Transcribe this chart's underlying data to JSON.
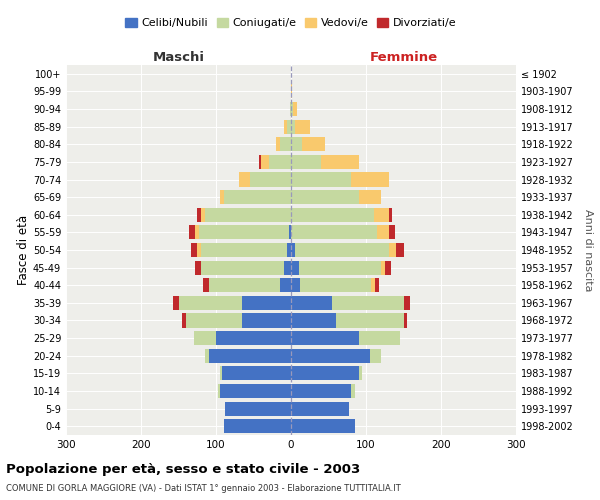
{
  "age_groups": [
    "0-4",
    "5-9",
    "10-14",
    "15-19",
    "20-24",
    "25-29",
    "30-34",
    "35-39",
    "40-44",
    "45-49",
    "50-54",
    "55-59",
    "60-64",
    "65-69",
    "70-74",
    "75-79",
    "80-84",
    "85-89",
    "90-94",
    "95-99",
    "100+"
  ],
  "birth_years": [
    "1998-2002",
    "1993-1997",
    "1988-1992",
    "1983-1987",
    "1978-1982",
    "1973-1977",
    "1968-1972",
    "1963-1967",
    "1958-1962",
    "1953-1957",
    "1948-1952",
    "1943-1947",
    "1938-1942",
    "1933-1937",
    "1928-1932",
    "1923-1927",
    "1918-1922",
    "1913-1917",
    "1908-1912",
    "1903-1907",
    "≤ 1902"
  ],
  "male_celibi": [
    90,
    88,
    95,
    92,
    110,
    100,
    65,
    65,
    15,
    10,
    5,
    3,
    0,
    0,
    0,
    0,
    0,
    0,
    0,
    0,
    0
  ],
  "male_coniugati": [
    0,
    0,
    3,
    3,
    5,
    30,
    75,
    85,
    95,
    110,
    115,
    120,
    115,
    90,
    55,
    30,
    15,
    5,
    2,
    0,
    0
  ],
  "male_vedovi": [
    0,
    0,
    0,
    0,
    0,
    0,
    0,
    0,
    0,
    0,
    5,
    5,
    5,
    5,
    15,
    10,
    5,
    5,
    0,
    0,
    0
  ],
  "male_divorziati": [
    0,
    0,
    0,
    0,
    0,
    0,
    5,
    8,
    8,
    8,
    8,
    8,
    5,
    0,
    0,
    3,
    0,
    0,
    0,
    0,
    0
  ],
  "fem_celibi": [
    85,
    77,
    80,
    90,
    105,
    90,
    60,
    55,
    12,
    10,
    5,
    0,
    0,
    0,
    0,
    0,
    0,
    0,
    0,
    0,
    0
  ],
  "fem_coniugati": [
    0,
    0,
    5,
    5,
    15,
    55,
    90,
    95,
    95,
    110,
    125,
    115,
    110,
    90,
    80,
    40,
    15,
    5,
    3,
    0,
    0
  ],
  "fem_vedovi": [
    0,
    0,
    0,
    0,
    0,
    0,
    0,
    0,
    5,
    5,
    10,
    15,
    20,
    30,
    50,
    50,
    30,
    20,
    5,
    1,
    0
  ],
  "fem_divorziati": [
    0,
    0,
    0,
    0,
    0,
    0,
    5,
    8,
    5,
    8,
    10,
    8,
    5,
    0,
    0,
    0,
    0,
    0,
    0,
    0,
    0
  ],
  "color_celibi": "#4472c4",
  "color_coniugati": "#c5d9a0",
  "color_vedovi": "#f9c96d",
  "color_divorziati": "#c0292c",
  "xlim": 300,
  "title": "Popolazione per età, sesso e stato civile - 2003",
  "subtitle": "COMUNE DI GORLA MAGGIORE (VA) - Dati ISTAT 1° gennaio 2003 - Elaborazione TUTTITALIA.IT",
  "ylabel_left": "Fasce di età",
  "ylabel_right": "Anni di nascita",
  "xlabel_left": "Maschi",
  "xlabel_right": "Femmine",
  "bg_color": "#ffffff",
  "plot_bg": "#eeeeea"
}
